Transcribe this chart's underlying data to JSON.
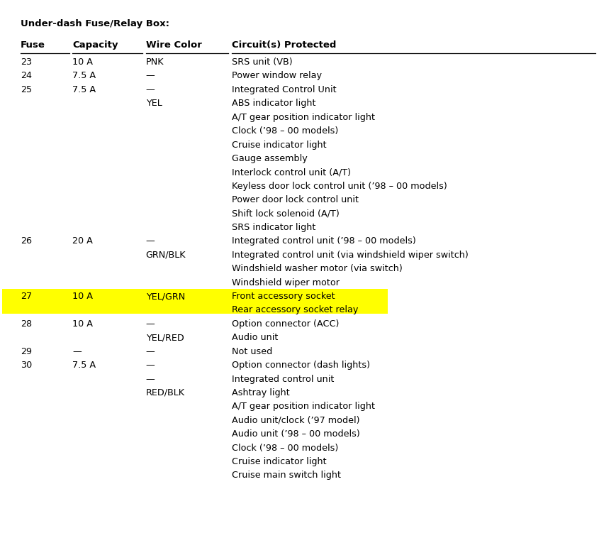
{
  "title": "Under-dash Fuse/Relay Box:",
  "headers": [
    "Fuse",
    "Capacity",
    "Wire Color",
    "Circuit(s) Protected"
  ],
  "bg_color": "#ffffff",
  "highlight_color": "#ffff00",
  "col_fuse": 0.03,
  "col_cap": 0.115,
  "col_wire": 0.235,
  "col_circ": 0.375,
  "rows": [
    {
      "fuse": "23",
      "capacity": "10 A",
      "wire": "PNK",
      "circuit": "SRS unit (VB)",
      "highlight": false
    },
    {
      "fuse": "24",
      "capacity": "7.5 A",
      "wire": "—",
      "circuit": "Power window relay",
      "highlight": false
    },
    {
      "fuse": "25",
      "capacity": "7.5 A",
      "wire": "—",
      "circuit": "Integrated Control Unit",
      "highlight": false
    },
    {
      "fuse": "",
      "capacity": "",
      "wire": "YEL",
      "circuit": "ABS indicator light",
      "highlight": false
    },
    {
      "fuse": "",
      "capacity": "",
      "wire": "",
      "circuit": "A/T gear position indicator light",
      "highlight": false
    },
    {
      "fuse": "",
      "capacity": "",
      "wire": "",
      "circuit": "Clock (’98 – 00 models)",
      "highlight": false
    },
    {
      "fuse": "",
      "capacity": "",
      "wire": "",
      "circuit": "Cruise indicator light",
      "highlight": false
    },
    {
      "fuse": "",
      "capacity": "",
      "wire": "",
      "circuit": "Gauge assembly",
      "highlight": false
    },
    {
      "fuse": "",
      "capacity": "",
      "wire": "",
      "circuit": "Interlock control unit (A/T)",
      "highlight": false
    },
    {
      "fuse": "",
      "capacity": "",
      "wire": "",
      "circuit": "Keyless door lock control unit (’98 – 00 models)",
      "highlight": false
    },
    {
      "fuse": "",
      "capacity": "",
      "wire": "",
      "circuit": "Power door lock control unit",
      "highlight": false
    },
    {
      "fuse": "",
      "capacity": "",
      "wire": "",
      "circuit": "Shift lock solenoid (A/T)",
      "highlight": false
    },
    {
      "fuse": "",
      "capacity": "",
      "wire": "",
      "circuit": "SRS indicator light",
      "highlight": false
    },
    {
      "fuse": "26",
      "capacity": "20 A",
      "wire": "—",
      "circuit": "Integrated control unit (’98 – 00 models)",
      "highlight": false
    },
    {
      "fuse": "",
      "capacity": "",
      "wire": "GRN/BLK",
      "circuit": "Integrated control unit (via windshield wiper switch)",
      "highlight": false
    },
    {
      "fuse": "",
      "capacity": "",
      "wire": "",
      "circuit": "Windshield washer motor (via switch)",
      "highlight": false
    },
    {
      "fuse": "",
      "capacity": "",
      "wire": "",
      "circuit": "Windshield wiper motor",
      "highlight": false
    },
    {
      "fuse": "27",
      "capacity": "10 A",
      "wire": "YEL/GRN",
      "circuit": "Front accessory socket",
      "highlight": true
    },
    {
      "fuse": "",
      "capacity": "",
      "wire": "",
      "circuit": "Rear accessory socket relay",
      "highlight": true
    },
    {
      "fuse": "28",
      "capacity": "10 A",
      "wire": "—",
      "circuit": "Option connector (ACC)",
      "highlight": false
    },
    {
      "fuse": "",
      "capacity": "",
      "wire": "YEL/RED",
      "circuit": "Audio unit",
      "highlight": false
    },
    {
      "fuse": "29",
      "capacity": "—",
      "wire": "—",
      "circuit": "Not used",
      "highlight": false
    },
    {
      "fuse": "30",
      "capacity": "7.5 A",
      "wire": "—",
      "circuit": "Option connector (dash lights)",
      "highlight": false
    },
    {
      "fuse": "",
      "capacity": "",
      "wire": "—",
      "circuit": "Integrated control unit",
      "highlight": false
    },
    {
      "fuse": "",
      "capacity": "",
      "wire": "RED/BLK",
      "circuit": "Ashtray light",
      "highlight": false
    },
    {
      "fuse": "",
      "capacity": "",
      "wire": "",
      "circuit": "A/T gear position indicator light",
      "highlight": false
    },
    {
      "fuse": "",
      "capacity": "",
      "wire": "",
      "circuit": "Audio unit/clock (’97 model)",
      "highlight": false
    },
    {
      "fuse": "",
      "capacity": "",
      "wire": "",
      "circuit": "Audio unit (’98 – 00 models)",
      "highlight": false
    },
    {
      "fuse": "",
      "capacity": "",
      "wire": "",
      "circuit": "Clock (’98 – 00 models)",
      "highlight": false
    },
    {
      "fuse": "",
      "capacity": "",
      "wire": "",
      "circuit": "Cruise indicator light",
      "highlight": false
    },
    {
      "fuse": "",
      "capacity": "",
      "wire": "",
      "circuit": "Cruise main switch light",
      "highlight": false
    }
  ]
}
